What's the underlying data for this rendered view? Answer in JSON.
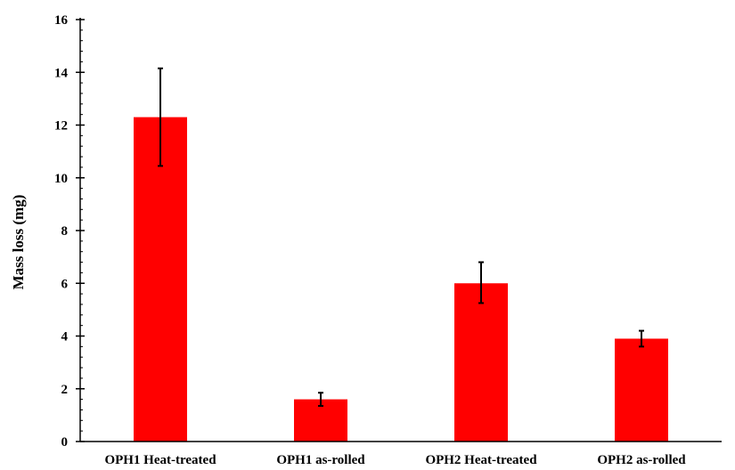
{
  "chart_data": {
    "type": "bar",
    "categories": [
      "OPH1 Heat-treated",
      "OPH1 as-rolled",
      "OPH2 Heat-treated",
      "OPH2 as-rolled"
    ],
    "values": [
      12.3,
      1.6,
      6.0,
      3.9
    ],
    "error_low": [
      10.45,
      1.35,
      5.25,
      3.6
    ],
    "error_high": [
      14.15,
      1.85,
      6.8,
      4.2
    ],
    "title": "",
    "xlabel": "",
    "ylabel": "Mass loss (mg)",
    "ylim": [
      0,
      16
    ],
    "yticks": [
      0,
      2,
      4,
      6,
      8,
      10,
      12,
      14,
      16
    ],
    "minor_tick_step": 0.4,
    "grid": false,
    "bar_color": "#ff0000",
    "axis_color": "#000000"
  }
}
